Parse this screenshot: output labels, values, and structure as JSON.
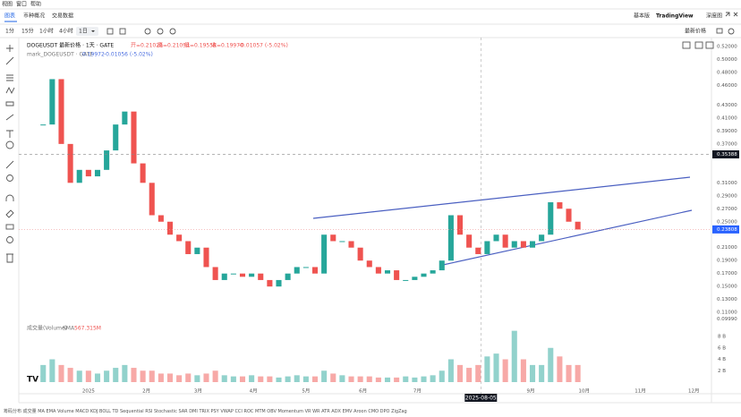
{
  "menu": [
    "视图",
    "窗口",
    "帮助"
  ],
  "tabs": [
    "图表",
    "币种概况",
    "交易数据"
  ],
  "views": [
    "基本版",
    "TradingView",
    "深度图"
  ],
  "intervals": [
    "1分",
    "15分",
    "1小时",
    "4小时",
    "1日"
  ],
  "price_source": "最新价格",
  "legend": {
    "symbol": "DOGEUSDT 最新价格 · 1天 · GATE",
    "open": "开=0.21028",
    "high": "高=0.21094",
    "low": "低=0.19558",
    "close": "收=0.19970",
    "change": "-0.01057 (-5.02%)",
    "mark_symbol": "mark_DOGEUSDT · GATE",
    "mark_value": "0.19972",
    "mark_change": "-0.01056 (-5.02%)"
  },
  "volume_legend": {
    "name": "成交量(Volume)",
    "sma": "SMA",
    "value": "567.315M"
  },
  "indicators": [
    "筹码分布",
    "成交量",
    "MA",
    "EMA",
    "Volume",
    "MACD",
    "KDJ",
    "BOLL",
    "TD Sequential",
    "RSI",
    "Stochastic",
    "SAR",
    "DMI",
    "TRIX",
    "PSY",
    "VWAP",
    "CCI",
    "ROC",
    "MTM",
    "OBV",
    "Momentum",
    "VR",
    "WR",
    "ATR",
    "ADX",
    "EMV",
    "Aroon",
    "CMO",
    "DPO",
    "ZigZag"
  ],
  "chart_data": {
    "type": "candlestick",
    "values": [
      0.4,
      0.47,
      0.37,
      0.31,
      0.33,
      0.32,
      0.33,
      0.36,
      0.4,
      0.42,
      0.34,
      0.31,
      0.26,
      0.25,
      0.23,
      0.22,
      0.2,
      0.21,
      0.18,
      0.16,
      0.17,
      0.17,
      0.165,
      0.17,
      0.16,
      0.15,
      0.16,
      0.17,
      0.18,
      0.18,
      0.17,
      0.23,
      0.22,
      0.22,
      0.21,
      0.19,
      0.18,
      0.17,
      0.175,
      0.16,
      0.16,
      0.165,
      0.17,
      0.175,
      0.19,
      0.26,
      0.23,
      0.21,
      0.2,
      0.22,
      0.23,
      0.21,
      0.22,
      0.21,
      0.22,
      0.23,
      0.28,
      0.27,
      0.25,
      0.238
    ],
    "up_color": "#26a69a",
    "down_color": "#ef5350",
    "xlim": [
      -2.69,
      73.75
    ],
    "xticks": [
      {
        "value": 5,
        "label": "2025"
      },
      {
        "value": 11.4,
        "label": "2月"
      },
      {
        "value": 17.1,
        "label": "3月"
      },
      {
        "value": 23.2,
        "label": "4月"
      },
      {
        "value": 29,
        "label": "5月"
      },
      {
        "value": 35.3,
        "label": "6月"
      },
      {
        "value": 41.3,
        "label": "7月"
      },
      {
        "value": 53.8,
        "label": "9月"
      },
      {
        "value": 59.7,
        "label": "10月"
      },
      {
        "value": 65.9,
        "label": "11月"
      },
      {
        "value": 71.8,
        "label": "12月"
      }
    ],
    "crosshair_x": {
      "value": 48.3,
      "label": "2025-08-05"
    },
    "ylim": [
      0.095,
      0.53
    ],
    "yticks": [
      {
        "value": 0.52,
        "label": "0.52000"
      },
      {
        "value": 0.5,
        "label": "0.50000"
      },
      {
        "value": 0.48,
        "label": "0.48000"
      },
      {
        "value": 0.46,
        "label": "0.46000"
      },
      {
        "value": 0.43,
        "label": "0.43000"
      },
      {
        "value": 0.41,
        "label": "0.41000"
      },
      {
        "value": 0.39,
        "label": "0.39000"
      },
      {
        "value": 0.37,
        "label": "0.37000"
      },
      {
        "value": 0.31,
        "label": "0.31000"
      },
      {
        "value": 0.29,
        "label": "0.29000"
      },
      {
        "value": 0.27,
        "label": "0.27000"
      },
      {
        "value": 0.25,
        "label": "0.25000"
      },
      {
        "value": 0.21,
        "label": "0.21000"
      },
      {
        "value": 0.19,
        "label": "0.19000"
      },
      {
        "value": 0.17,
        "label": "0.17000"
      },
      {
        "value": 0.15,
        "label": "0.15000"
      },
      {
        "value": 0.13,
        "label": "0.13000"
      },
      {
        "value": 0.11,
        "label": "0.11000"
      },
      {
        "value": 0.0999,
        "label": "0.09990"
      }
    ],
    "price_marks": [
      0.35388,
      0.23808
    ],
    "grid": false,
    "volume": {
      "values": [
        3,
        4,
        3,
        2.5,
        2,
        2,
        1.5,
        2,
        2.5,
        3,
        2.5,
        2,
        2,
        1.5,
        1.5,
        1.2,
        1.5,
        1.2,
        1.5,
        2,
        1.2,
        1,
        1,
        1.2,
        1,
        1,
        0.8,
        1,
        1.2,
        1,
        1,
        2,
        1.5,
        1.2,
        1,
        1,
        1,
        0.8,
        0.8,
        0.8,
        1,
        0.8,
        1,
        1.2,
        2,
        4,
        3,
        2.5,
        3,
        4.5,
        5,
        4,
        9,
        4,
        3,
        3,
        6,
        4.5,
        3,
        3
      ],
      "ylim": [
        0,
        10.2
      ],
      "yticks": [
        {
          "value": 8,
          "label": "8 B"
        },
        {
          "value": 6,
          "label": "6 B"
        },
        {
          "value": 4,
          "label": "4 B"
        },
        {
          "value": 2,
          "label": "2 B"
        }
      ]
    }
  }
}
